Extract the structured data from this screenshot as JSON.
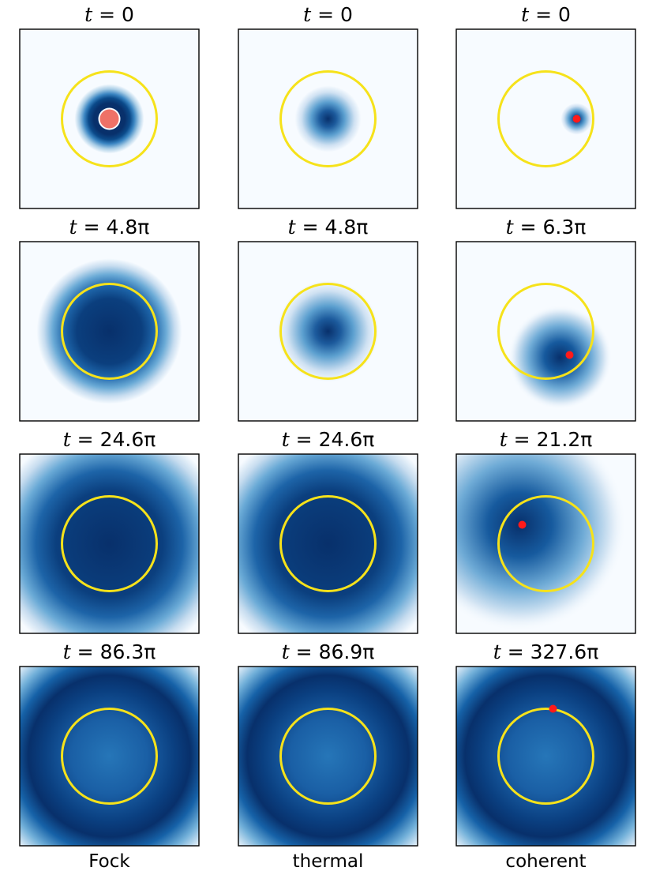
{
  "chart_data": {
    "type": "heatmap",
    "colormap": "Blues",
    "colors": {
      "reference_circle": "#f6e21a",
      "classical_marker": "#ff1a1a",
      "fock_core": "#ee7167"
    },
    "columns": [
      "Fock",
      "thermal",
      "coherent"
    ],
    "panels": [
      {
        "row": 0,
        "col": 0,
        "state": "Fock",
        "time_label": "0",
        "distribution": "ring",
        "spread": 0.16,
        "ring_radius": 0.25,
        "marker": null,
        "core_dot": true
      },
      {
        "row": 0,
        "col": 1,
        "state": "thermal",
        "time_label": "0",
        "distribution": "gaussian",
        "spread": 0.12,
        "marker": null
      },
      {
        "row": 0,
        "col": 2,
        "state": "coherent",
        "time_label": "0",
        "distribution": "blob",
        "spread": 0.06,
        "center": [
          0.65,
          0.0
        ],
        "marker": [
          0.65,
          0.0
        ]
      },
      {
        "row": 1,
        "col": 0,
        "state": "Fock",
        "time_label": "4.8π",
        "distribution": "gaussian",
        "spread": 0.34,
        "marker": null
      },
      {
        "row": 1,
        "col": 1,
        "state": "thermal",
        "time_label": "4.8π",
        "distribution": "gaussian",
        "spread": 0.24,
        "marker": null
      },
      {
        "row": 1,
        "col": 2,
        "state": "coherent",
        "time_label": "6.3π",
        "distribution": "blob",
        "spread": 0.22,
        "center": [
          0.3,
          -0.55
        ],
        "marker": [
          0.5,
          -0.5
        ]
      },
      {
        "row": 2,
        "col": 0,
        "state": "Fock",
        "time_label": "24.6π",
        "distribution": "gaussian",
        "spread": 0.9,
        "marker": null
      },
      {
        "row": 2,
        "col": 1,
        "state": "thermal",
        "time_label": "24.6π",
        "distribution": "gaussian",
        "spread": 0.9,
        "marker": null
      },
      {
        "row": 2,
        "col": 2,
        "state": "coherent",
        "time_label": "21.2π",
        "distribution": "blob",
        "spread": 0.7,
        "center": [
          -0.55,
          0.4
        ],
        "marker": [
          -0.5,
          0.4
        ]
      },
      {
        "row": 3,
        "col": 0,
        "state": "Fock",
        "time_label": "86.3π",
        "distribution": "ring",
        "spread": 0.7,
        "ring_radius": 0.9,
        "marker": null
      },
      {
        "row": 3,
        "col": 1,
        "state": "thermal",
        "time_label": "86.9π",
        "distribution": "ring",
        "spread": 0.7,
        "ring_radius": 0.9,
        "marker": null
      },
      {
        "row": 3,
        "col": 2,
        "state": "coherent",
        "time_label": "327.6π",
        "distribution": "ring",
        "spread": 0.7,
        "ring_radius": 0.9,
        "marker": [
          0.15,
          1.0
        ]
      }
    ]
  }
}
